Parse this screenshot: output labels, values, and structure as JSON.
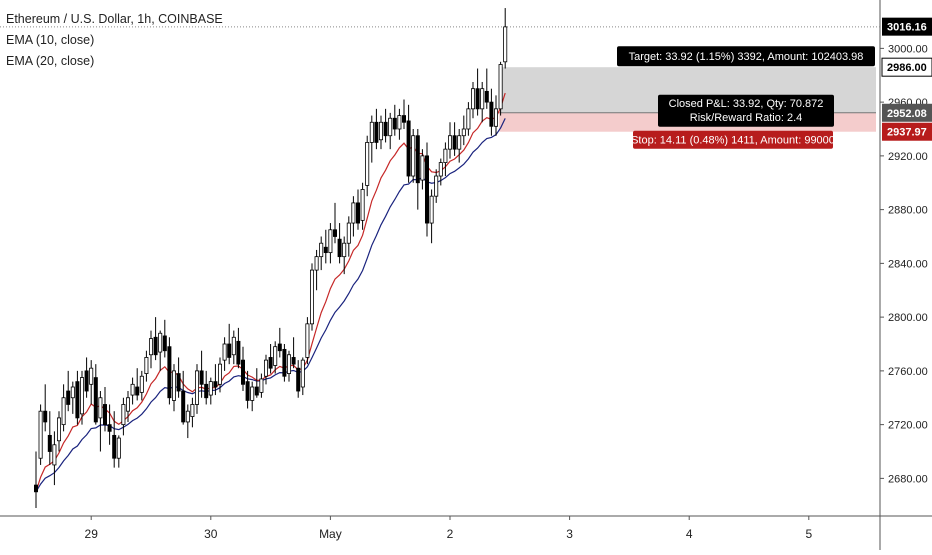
{
  "chart_data": {
    "type": "candlestick",
    "title": "Ethereum / U.S. Dollar, 1h, COINBASE",
    "indicators": [
      {
        "name": "EMA (10, close)",
        "color": "#c62828"
      },
      {
        "name": "EMA (20, close)",
        "color": "#1a237e"
      }
    ],
    "x_ticks": [
      "29",
      "30",
      "May",
      "2",
      "3",
      "4",
      "5"
    ],
    "y_ticks": [
      "2680.00",
      "2720.00",
      "2760.00",
      "2800.00",
      "2840.00",
      "2880.00",
      "2920.00",
      "2960.00",
      "3000.00"
    ],
    "ylim": [
      2652,
      3036
    ],
    "last_price": "3016.16",
    "candles": [
      [
        2675,
        2700,
        2658,
        2670
      ],
      [
        2695,
        2735,
        2690,
        2730
      ],
      [
        2730,
        2750,
        2715,
        2722
      ],
      [
        2712,
        2730,
        2690,
        2700
      ],
      [
        2690,
        2715,
        2675,
        2705
      ],
      [
        2708,
        2730,
        2700,
        2725
      ],
      [
        2720,
        2750,
        2715,
        2740
      ],
      [
        2745,
        2760,
        2730,
        2735
      ],
      [
        2740,
        2752,
        2728,
        2748
      ],
      [
        2752,
        2760,
        2720,
        2725
      ],
      [
        2728,
        2760,
        2720,
        2755
      ],
      [
        2760,
        2770,
        2740,
        2745
      ],
      [
        2750,
        2768,
        2735,
        2762
      ],
      [
        2755,
        2765,
        2720,
        2722
      ],
      [
        2725,
        2745,
        2700,
        2740
      ],
      [
        2735,
        2748,
        2715,
        2720
      ],
      [
        2720,
        2735,
        2705,
        2715
      ],
      [
        2712,
        2730,
        2688,
        2695
      ],
      [
        2695,
        2712,
        2688,
        2710
      ],
      [
        2720,
        2740,
        2712,
        2735
      ],
      [
        2730,
        2745,
        2722,
        2740
      ],
      [
        2742,
        2755,
        2735,
        2750
      ],
      [
        2748,
        2762,
        2738,
        2742
      ],
      [
        2744,
        2760,
        2738,
        2756
      ],
      [
        2758,
        2775,
        2752,
        2770
      ],
      [
        2772,
        2790,
        2762,
        2784
      ],
      [
        2785,
        2800,
        2768,
        2772
      ],
      [
        2774,
        2790,
        2760,
        2788
      ],
      [
        2786,
        2798,
        2770,
        2775
      ],
      [
        2778,
        2785,
        2735,
        2740
      ],
      [
        2738,
        2765,
        2730,
        2760
      ],
      [
        2758,
        2770,
        2740,
        2745
      ],
      [
        2745,
        2760,
        2720,
        2722
      ],
      [
        2722,
        2735,
        2710,
        2730
      ],
      [
        2726,
        2740,
        2718,
        2735
      ],
      [
        2735,
        2765,
        2728,
        2760
      ],
      [
        2760,
        2775,
        2740,
        2750
      ],
      [
        2750,
        2760,
        2735,
        2740
      ],
      [
        2742,
        2755,
        2735,
        2752
      ],
      [
        2752,
        2765,
        2742,
        2748
      ],
      [
        2750,
        2770,
        2744,
        2765
      ],
      [
        2768,
        2785,
        2760,
        2780
      ],
      [
        2780,
        2795,
        2765,
        2770
      ],
      [
        2772,
        2790,
        2765,
        2785
      ],
      [
        2782,
        2792,
        2762,
        2765
      ],
      [
        2768,
        2778,
        2745,
        2750
      ],
      [
        2752,
        2760,
        2732,
        2738
      ],
      [
        2738,
        2752,
        2730,
        2748
      ],
      [
        2748,
        2762,
        2740,
        2742
      ],
      [
        2744,
        2758,
        2740,
        2754
      ],
      [
        2756,
        2772,
        2750,
        2768
      ],
      [
        2770,
        2780,
        2758,
        2762
      ],
      [
        2764,
        2782,
        2758,
        2778
      ],
      [
        2780,
        2792,
        2770,
        2775
      ],
      [
        2776,
        2780,
        2752,
        2756
      ],
      [
        2758,
        2775,
        2752,
        2772
      ],
      [
        2770,
        2785,
        2762,
        2765
      ],
      [
        2762,
        2768,
        2740,
        2745
      ],
      [
        2748,
        2770,
        2742,
        2768
      ],
      [
        2770,
        2800,
        2765,
        2795
      ],
      [
        2795,
        2840,
        2790,
        2835
      ],
      [
        2835,
        2850,
        2820,
        2845
      ],
      [
        2845,
        2860,
        2835,
        2855
      ],
      [
        2852,
        2865,
        2840,
        2848
      ],
      [
        2848,
        2870,
        2840,
        2865
      ],
      [
        2865,
        2885,
        2855,
        2860
      ],
      [
        2858,
        2870,
        2840,
        2845
      ],
      [
        2845,
        2860,
        2832,
        2855
      ],
      [
        2855,
        2875,
        2845,
        2870
      ],
      [
        2870,
        2890,
        2860,
        2885
      ],
      [
        2885,
        2895,
        2865,
        2870
      ],
      [
        2872,
        2900,
        2865,
        2895
      ],
      [
        2898,
        2935,
        2890,
        2930
      ],
      [
        2930,
        2950,
        2915,
        2945
      ],
      [
        2945,
        2955,
        2925,
        2930
      ],
      [
        2932,
        2950,
        2925,
        2945
      ],
      [
        2945,
        2955,
        2930,
        2935
      ],
      [
        2935,
        2952,
        2925,
        2948
      ],
      [
        2948,
        2958,
        2935,
        2940
      ],
      [
        2940,
        2955,
        2932,
        2950
      ],
      [
        2950,
        2962,
        2940,
        2945
      ],
      [
        2946,
        2958,
        2900,
        2905
      ],
      [
        2905,
        2940,
        2900,
        2935
      ],
      [
        2935,
        2940,
        2880,
        2900
      ],
      [
        2902,
        2925,
        2895,
        2920
      ],
      [
        2920,
        2930,
        2860,
        2870
      ],
      [
        2870,
        2895,
        2855,
        2890
      ],
      [
        2890,
        2910,
        2885,
        2905
      ],
      [
        2905,
        2918,
        2898,
        2915
      ],
      [
        2915,
        2930,
        2905,
        2925
      ],
      [
        2925,
        2945,
        2918,
        2935
      ],
      [
        2935,
        2945,
        2920,
        2925
      ],
      [
        2925,
        2940,
        2915,
        2935
      ],
      [
        2935,
        2950,
        2928,
        2940
      ],
      [
        2940,
        2960,
        2935,
        2955
      ],
      [
        2955,
        2975,
        2948,
        2970
      ],
      [
        2970,
        2985,
        2950,
        2955
      ],
      [
        2955,
        2975,
        2945,
        2970
      ],
      [
        2968,
        2985,
        2955,
        2960
      ],
      [
        2960,
        2970,
        2935,
        2942
      ],
      [
        2942,
        2965,
        2935,
        2955
      ],
      [
        2955,
        2990,
        2950,
        2988
      ],
      [
        2990,
        3030,
        2985,
        3016
      ]
    ],
    "position": {
      "entry": 2952.08,
      "target": 2986.0,
      "stop": 2937.97,
      "target_label": "Target: 33.92 (1.15%) 3392, Amount: 102403.98",
      "stop_label": "Stop: 14.11 (0.48%) 1411, Amount: 99000",
      "pnl_label": "Closed P&L: 33.92, Qty: 70.872",
      "rr_label": "Risk/Reward Ratio: 2.4"
    },
    "price_labels": {
      "last": "3016.16",
      "target": "2986.00",
      "entry": "2952.08",
      "stop": "2937.97"
    },
    "colors": {
      "up_body": "#ffffff",
      "down_body": "#000000",
      "wick": "#000000",
      "ema10": "#c62828",
      "ema20": "#1a237e",
      "target_zone": "#d6d6d6",
      "stop_zone": "#f4cccc",
      "stop_label_bg": "#b71c1c",
      "dark_label_bg": "#000000"
    }
  }
}
